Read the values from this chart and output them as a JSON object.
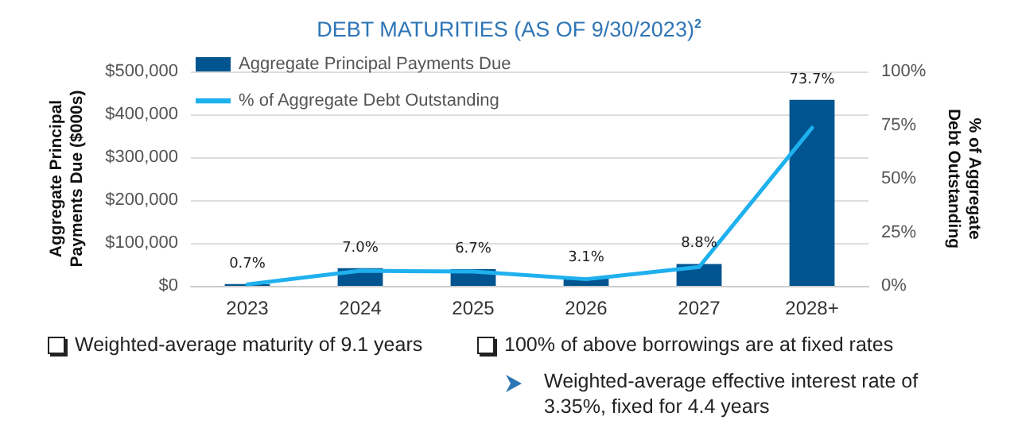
{
  "chart_data": {
    "type": "bar",
    "title": "DEBT MATURITIES (AS OF 9/30/2023)$^{2}$",
    "categories": [
      "2023",
      "2024",
      "2025",
      "2026",
      "2027",
      "2028+"
    ],
    "ylabel": "Aggregate Principal Payments Due ($000s)",
    "y2label": "% of Aggregate Debt Outstanding",
    "series": [
      {
        "name": "Aggregate Principal Payments Due",
        "color": "#00548f",
        "values": [
          4000,
          41000,
          39000,
          19000,
          51000,
          434000
        ]
      },
      {
        "name": "% of Aggregate Debt Outstanding",
        "type": "line",
        "axis": "y2",
        "color": "#1fb0ee",
        "values": [
          0.7,
          7.0,
          6.7,
          3.1,
          8.8,
          73.7
        ],
        "value_labels": [
          "0.7%",
          "7.0%",
          "6.7%",
          "3.1%",
          "8.8%",
          "73.7%"
        ]
      }
    ],
    "ylim": [
      0,
      500000
    ],
    "yticks": [
      {
        "value": 0,
        "label": "$0"
      },
      {
        "value": 100000,
        "label": "$100,000"
      },
      {
        "value": 200000,
        "label": "$200,000"
      },
      {
        "value": 300000,
        "label": "$300,000"
      },
      {
        "value": 400000,
        "label": "$400,000"
      },
      {
        "value": 500000,
        "label": "$500,000"
      }
    ],
    "y2lim": [
      0,
      100
    ],
    "y2ticks": [
      {
        "value": 0,
        "label": "0%"
      },
      {
        "value": 25,
        "label": "25%"
      },
      {
        "value": 50,
        "label": "50%"
      },
      {
        "value": 75,
        "label": "75%"
      },
      {
        "value": 100,
        "label": "100%"
      }
    ],
    "grid": "y",
    "legend": "top left",
    "marker": "none",
    "line_style": "solid",
    "annotations": [
      "Weighted-average maturity of 9.1 years",
      "100% of above borrowings are at fixed rates",
      "Weighted-average effective interest rate of 3.35%, fixed for 4.4 years"
    ]
  }
}
